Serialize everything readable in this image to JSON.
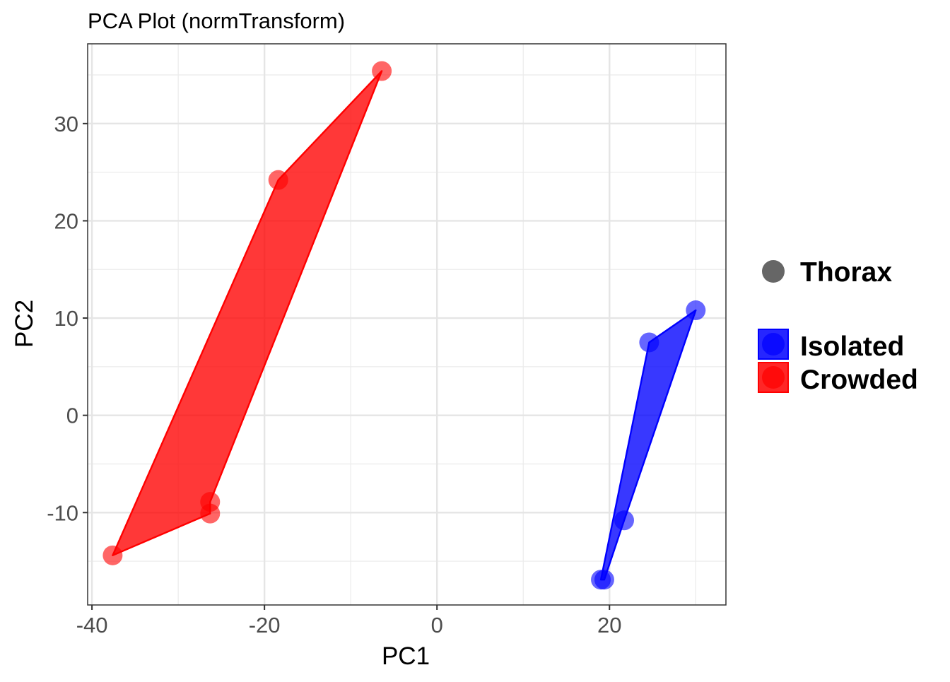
{
  "chart_data": {
    "type": "scatter",
    "title": "PCA Plot (normTransform)",
    "xlabel": "PC1",
    "ylabel": "PC2",
    "xlim": [
      -40.5,
      33.5
    ],
    "ylim": [
      -19.5,
      38.2
    ],
    "x_ticks": [
      -40,
      -20,
      0,
      20
    ],
    "x_tick_labels": [
      "-40",
      "-20",
      "0",
      "20"
    ],
    "y_ticks": [
      -10,
      0,
      10,
      20,
      30
    ],
    "y_tick_labels": [
      "-10",
      "0",
      "10",
      "20",
      "30"
    ],
    "grid": true,
    "legend_placement": "right",
    "shape_legend": {
      "label": "Thorax",
      "color": "#666666"
    },
    "series": [
      {
        "name": "Isolated",
        "color": "#0000ff",
        "points": [
          {
            "x": 30.0,
            "y": 10.8
          },
          {
            "x": 24.6,
            "y": 7.5
          },
          {
            "x": 21.7,
            "y": -10.8
          },
          {
            "x": 19.0,
            "y": -16.9
          },
          {
            "x": 19.4,
            "y": -16.9
          }
        ],
        "hull": [
          {
            "x": 30.0,
            "y": 10.8
          },
          {
            "x": 24.6,
            "y": 7.5
          },
          {
            "x": 19.0,
            "y": -16.9
          },
          {
            "x": 19.4,
            "y": -16.9
          },
          {
            "x": 21.7,
            "y": -10.8
          }
        ]
      },
      {
        "name": "Crowded",
        "color": "#ff0000",
        "points": [
          {
            "x": -6.4,
            "y": 35.4
          },
          {
            "x": -18.4,
            "y": 24.2
          },
          {
            "x": -26.3,
            "y": -8.9
          },
          {
            "x": -26.3,
            "y": -10.1
          },
          {
            "x": -37.6,
            "y": -14.4
          }
        ],
        "hull": [
          {
            "x": -6.4,
            "y": 35.4
          },
          {
            "x": -18.4,
            "y": 24.2
          },
          {
            "x": -37.6,
            "y": -14.4
          },
          {
            "x": -26.3,
            "y": -10.1
          },
          {
            "x": -26.3,
            "y": -8.9
          }
        ]
      }
    ]
  }
}
